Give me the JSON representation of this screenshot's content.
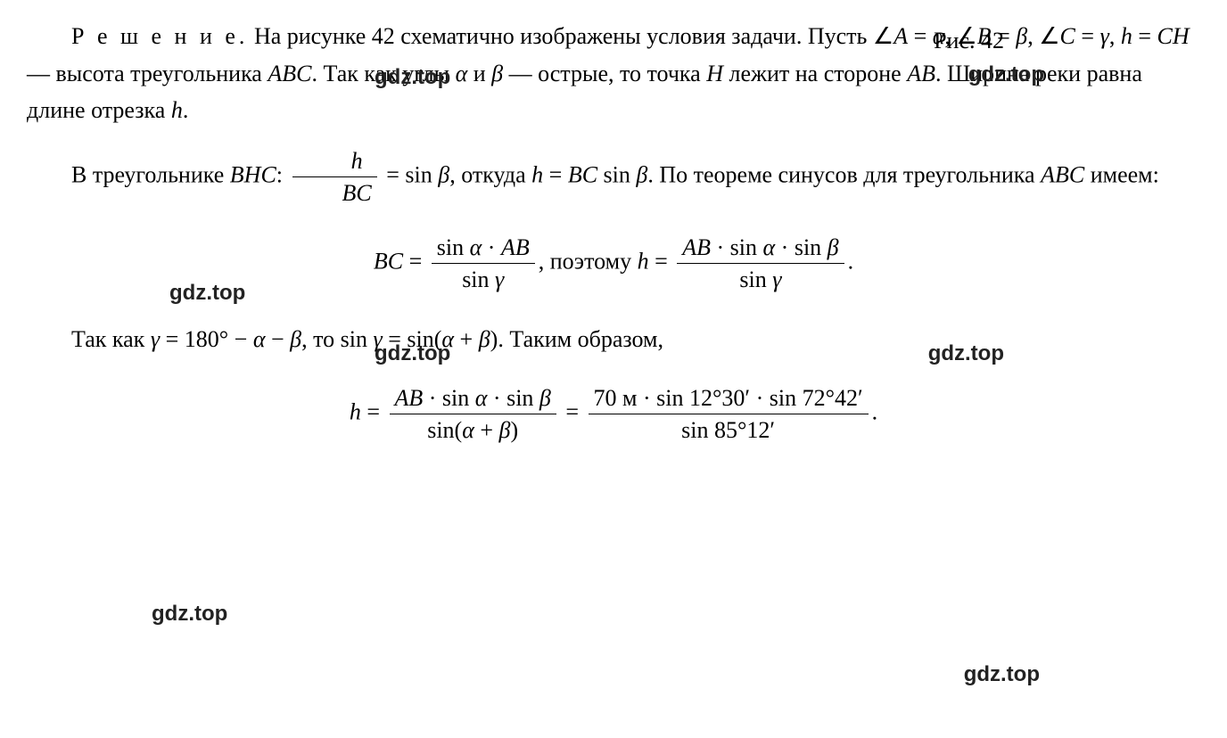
{
  "figure_reference": "Рис. 42",
  "watermarks": {
    "text": "gdz.top",
    "font_family": "Arial",
    "font_weight": "bold",
    "font_size_pt": 18,
    "color": "#222222"
  },
  "body_style": {
    "font_family": "Times New Roman",
    "font_size_pt": 20,
    "line_height": 1.6,
    "text_color": "#000000",
    "background_color": "#ffffff"
  },
  "paragraphs": {
    "p1": {
      "label_spaced": "Р е ш е н и е.",
      "part1": " На рисунке 42 схематично изображены условия задачи. Пусть ∠",
      "mathA": "A",
      "part2": " = ",
      "alpha1": "α",
      "part3": ", ∠",
      "mathB": "B",
      "part4": " = ",
      "beta1": "β",
      "part5": ", ∠",
      "mathC": "C",
      "part6": " = ",
      "gamma1": "γ",
      "part7": ", ",
      "h1": "h",
      "part8": " = ",
      "CH": "CH",
      "part9": " — высота треугольника ",
      "ABC1": "ABC",
      "part10": ". Так как углы ",
      "alpha2": "α",
      "part11": " и ",
      "beta2": "β",
      "part12": " — острые, то точка ",
      "mathH": "H",
      "part13": " лежит на стороне ",
      "AB1": "AB",
      "part14": ". Ширина реки равна длине отрезка ",
      "h2": "h",
      "part15": "."
    },
    "p2": {
      "part1": "В треугольнике ",
      "BHC": "BHC",
      "part2": ": ",
      "frac_inline": {
        "num": "h",
        "den": "BC"
      },
      "part3": " = sin ",
      "beta3": "β",
      "part4": ", откуда ",
      "h3": "h",
      "part5": " = ",
      "BC1": "BC",
      "part6": " sin ",
      "beta4": "β",
      "part7": ". По теореме синусов для треугольника ",
      "ABC2": "ABC",
      "part8": " имеем:"
    },
    "formula1": {
      "BC": "BC",
      "eq1": " = ",
      "frac1": {
        "num_pre": "sin ",
        "num_alpha": "α",
        "num_mid": " · ",
        "num_AB": "AB",
        "den_pre": "sin ",
        "den_gamma": "γ"
      },
      "mid": ", поэтому ",
      "h": "h",
      "eq2": " = ",
      "frac2": {
        "num_AB": "AB",
        "num_mid1": " · sin ",
        "num_alpha": "α",
        "num_mid2": " · sin ",
        "num_beta": "β",
        "den_pre": "sin ",
        "den_gamma": "γ"
      },
      "end": "."
    },
    "p3": {
      "part1": "Так как ",
      "gamma2": "γ",
      "part2": " = 180° − ",
      "alpha3": "α",
      "part3": " − ",
      "beta5": "β",
      "part4": ", то sin ",
      "gamma3": "γ",
      "part5": " = sin(",
      "alpha4": "α",
      "part6": " + ",
      "beta6": "β",
      "part7": "). Таким образом,"
    },
    "formula2": {
      "h": "h",
      "eq1": " = ",
      "frac1": {
        "num_AB": "AB",
        "num_mid1": " · sin ",
        "num_alpha": "α",
        "num_mid2": " · sin ",
        "num_beta": "β",
        "den_pre": "sin(",
        "den_alpha": "α",
        "den_mid": " + ",
        "den_beta": "β",
        "den_post": ")"
      },
      "eq2": " = ",
      "frac2": {
        "num": "70 м · sin 12°30′ · sin 72°42′",
        "den": "sin 85°12′"
      },
      "end": "."
    }
  }
}
